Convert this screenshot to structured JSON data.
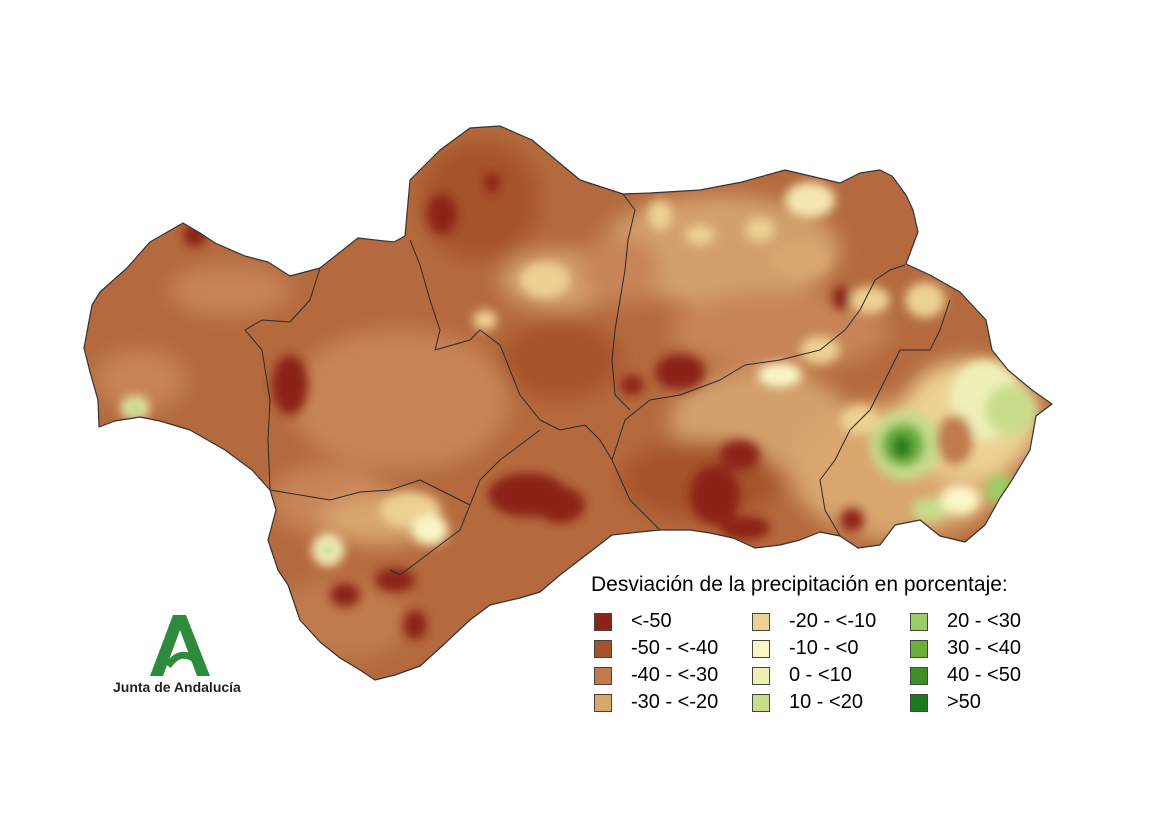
{
  "legend": {
    "title": "Desviación de la precipitación en porcentaje:",
    "items": [
      {
        "label": "<-50",
        "color": "#8b2318"
      },
      {
        "label": "-50 - <-40",
        "color": "#a6522a"
      },
      {
        "label": "-40 - <-30",
        "color": "#c07a4e"
      },
      {
        "label": "-30 - <-20",
        "color": "#d9a66e"
      },
      {
        "label": "-20 - <-10",
        "color": "#ecd193"
      },
      {
        "label": "-10 - <0",
        "color": "#fbf6c6"
      },
      {
        "label": "0 - <10",
        "color": "#eef0b6"
      },
      {
        "label": "10 - <20",
        "color": "#c8dd8a"
      },
      {
        "label": "20 - <30",
        "color": "#9ccc65"
      },
      {
        "label": "30 - <40",
        "color": "#6cae3c"
      },
      {
        "label": "40 - <50",
        "color": "#3f8f27"
      },
      {
        "label": ">50",
        "color": "#1b7a1b"
      }
    ]
  },
  "logo": {
    "text": "Junta de Andalucía",
    "icon": "letter-a-logo-icon",
    "color": "#2e8b3e"
  }
}
